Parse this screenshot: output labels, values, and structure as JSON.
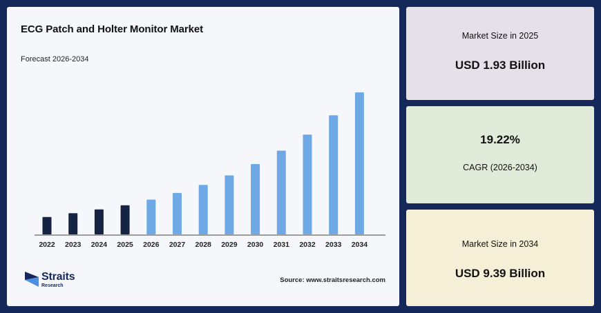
{
  "title": "ECG Patch and Holter Monitor Market",
  "subtitle": "Forecast 2026-2034",
  "source": "Source: www.straitsresearch.com",
  "logo": {
    "name": "Straits",
    "tagline": "Research"
  },
  "cards": [
    {
      "label": "Market Size in 2025",
      "value": "USD 1.93 Billion"
    },
    {
      "value": "19.22%",
      "label": "CAGR (2026-2034)"
    },
    {
      "label": "Market Size in 2034",
      "value": "USD 9.39 Billion"
    }
  ],
  "colors": {
    "background": "#14285a",
    "historical_bar": "#162444",
    "forecast_bar": "#6ea8e5"
  },
  "chart_data": {
    "type": "bar",
    "categories": [
      "2022",
      "2023",
      "2024",
      "2025",
      "2026",
      "2027",
      "2028",
      "2029",
      "2030",
      "2031",
      "2032",
      "2033",
      "2034"
    ],
    "values": [
      1.15,
      1.4,
      1.65,
      1.93,
      2.3,
      2.74,
      3.27,
      3.9,
      4.65,
      5.54,
      6.6,
      7.87,
      9.39
    ],
    "historical_count": 4,
    "ylim": [
      0,
      9.39
    ],
    "grid": false,
    "legend": "none",
    "y_axis_visible": false
  }
}
